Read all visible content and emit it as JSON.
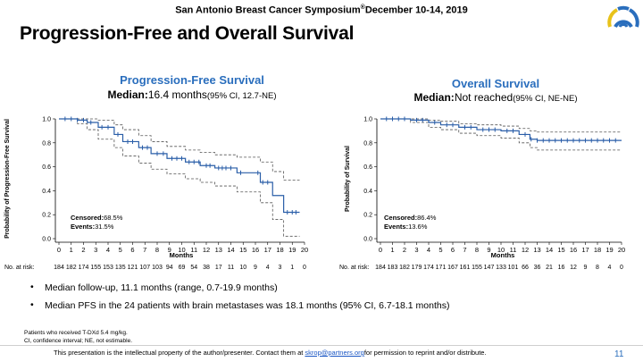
{
  "header": {
    "conference": "San Antonio Breast Cancer Symposium",
    "separator": "®",
    "dates": "December 10-14, 2019"
  },
  "slide_title": "Progression-Free and Overall Survival",
  "pfs_panel": {
    "title": "Progression-Free Survival",
    "median_label": "Median:",
    "median_value": "16.4 months",
    "median_ci": "(95% CI, 12.7-NE)",
    "censored_label": "Censored:",
    "censored_value": "68.5%",
    "events_label": "Events:",
    "events_value": "31.5%",
    "at_risk_label": "No. at risk:"
  },
  "os_panel": {
    "title": "Overall Survival",
    "median_label": "Median:",
    "median_value": "Not reached",
    "median_ci": "(95% CI, NE-NE)",
    "censored_label": "Censored:",
    "censored_value": "86.4%",
    "events_label": "Events:",
    "events_value": "13.6%",
    "at_risk_label": "No. at risk:"
  },
  "chart_data": [
    {
      "type": "line",
      "name": "pfs",
      "title": "Progression-Free Survival",
      "xlabel": "Months",
      "ylabel": "Probability of Progression-Free Survival",
      "xlim": [
        0,
        20
      ],
      "ylim": [
        0,
        1
      ],
      "xticks": [
        "0",
        "1",
        "2",
        "3",
        "4",
        "5",
        "6",
        "7",
        "8",
        "9",
        "10",
        "11",
        "12",
        "13",
        "14",
        "15",
        "16",
        "17",
        "18",
        "19",
        "20"
      ],
      "yticks": [
        "0.0",
        "0.2",
        "0.4",
        "0.6",
        "0.8",
        "1.0"
      ],
      "color": "#2a5ea8",
      "series": [
        {
          "name": "KM estimate",
          "x": [
            0,
            1.5,
            2.3,
            3.2,
            4.5,
            5.2,
            6.5,
            7.5,
            8.8,
            10.3,
            11.5,
            12.7,
            14.5,
            16.4,
            17.4,
            18.3,
            19.6
          ],
          "y": [
            1.0,
            0.99,
            0.97,
            0.93,
            0.87,
            0.81,
            0.76,
            0.71,
            0.67,
            0.64,
            0.61,
            0.59,
            0.55,
            0.47,
            0.36,
            0.22,
            0.22
          ]
        },
        {
          "name": "95% CI upper",
          "x": [
            0,
            1.5,
            2.3,
            3.2,
            4.5,
            5.2,
            6.5,
            7.5,
            8.8,
            10.3,
            11.5,
            12.7,
            14.5,
            16.4,
            17.4,
            18.3,
            19.6
          ],
          "y": [
            1.0,
            1.0,
            1.0,
            0.99,
            0.95,
            0.91,
            0.86,
            0.81,
            0.77,
            0.74,
            0.72,
            0.7,
            0.68,
            0.64,
            0.56,
            0.49,
            0.49
          ]
        },
        {
          "name": "95% CI lower",
          "x": [
            0,
            1.5,
            2.3,
            3.2,
            4.5,
            5.2,
            6.5,
            7.5,
            8.8,
            10.3,
            11.5,
            12.7,
            14.5,
            16.4,
            17.4,
            18.3,
            19.6
          ],
          "y": [
            1.0,
            0.96,
            0.91,
            0.83,
            0.76,
            0.69,
            0.63,
            0.58,
            0.54,
            0.5,
            0.47,
            0.44,
            0.39,
            0.3,
            0.16,
            0.02,
            0.02
          ]
        }
      ],
      "censor_x": [
        0.5,
        1,
        1.5,
        2,
        2.6,
        3.5,
        4,
        4.8,
        5.6,
        6,
        6.8,
        7.2,
        8,
        8.5,
        9.2,
        9.6,
        10,
        10.6,
        11,
        11.4,
        12,
        12.3,
        13,
        13.3,
        13.6,
        14,
        14.8,
        16.2,
        16.6,
        17,
        18.6,
        19,
        19.3
      ],
      "at_risk": [
        "184",
        "182",
        "174",
        "155",
        "153",
        "135",
        "121",
        "107",
        "103",
        "94",
        "69",
        "54",
        "38",
        "17",
        "11",
        "10",
        "9",
        "4",
        "3",
        "1",
        "0"
      ]
    },
    {
      "type": "line",
      "name": "os",
      "title": "Overall Survival",
      "xlabel": "Months",
      "ylabel": "Probability of Survival",
      "xlim": [
        0,
        20
      ],
      "ylim": [
        0,
        1
      ],
      "xticks": [
        "0",
        "1",
        "2",
        "3",
        "4",
        "5",
        "6",
        "7",
        "8",
        "9",
        "10",
        "11",
        "12",
        "13",
        "14",
        "15",
        "16",
        "17",
        "18",
        "19",
        "20"
      ],
      "yticks": [
        "0.0",
        "0.2",
        "0.4",
        "0.6",
        "0.8",
        "1.0"
      ],
      "color": "#2a5ea8",
      "series": [
        {
          "name": "KM estimate",
          "x": [
            0,
            2.5,
            4,
            5,
            6.5,
            8,
            10,
            11.5,
            12.4,
            13,
            20
          ],
          "y": [
            1.0,
            0.99,
            0.97,
            0.95,
            0.93,
            0.91,
            0.9,
            0.87,
            0.83,
            0.82,
            0.82
          ]
        },
        {
          "name": "95% CI upper",
          "x": [
            0,
            2.5,
            4,
            5,
            6.5,
            8,
            10,
            11.5,
            12.4,
            13,
            20
          ],
          "y": [
            1.0,
            1.0,
            0.99,
            0.98,
            0.96,
            0.95,
            0.94,
            0.92,
            0.9,
            0.89,
            0.89
          ]
        },
        {
          "name": "95% CI lower",
          "x": [
            0,
            2.5,
            4,
            5,
            6.5,
            8,
            10,
            11.5,
            12.4,
            13,
            20
          ],
          "y": [
            1.0,
            0.97,
            0.93,
            0.91,
            0.88,
            0.86,
            0.84,
            0.8,
            0.76,
            0.74,
            0.74
          ]
        }
      ],
      "censor_x": [
        0.5,
        1,
        1.5,
        2,
        3,
        3.5,
        4.5,
        5.5,
        6,
        7,
        7.5,
        8.5,
        9,
        9.5,
        10.5,
        11,
        12,
        12.5,
        13,
        13.5,
        14,
        14.5,
        15,
        15.5,
        16,
        16.5,
        17,
        17.5,
        18,
        18.5,
        19,
        19.5
      ],
      "at_risk": [
        "184",
        "183",
        "182",
        "179",
        "174",
        "171",
        "167",
        "161",
        "155",
        "147",
        "133",
        "101",
        "66",
        "36",
        "21",
        "16",
        "12",
        "9",
        "8",
        "4",
        "0"
      ]
    }
  ],
  "bullets": [
    "Median follow-up, 11.1 months (range, 0.7-19.9 months)",
    "Median PFS in the 24 patients with brain metastases was 18.1 months (95% CI, 6.7-18.1 months)"
  ],
  "footnotes": [
    "Patients who received T-DXd 5.4 mg/kg.",
    "CI, confidence interval; NE, not estimable."
  ],
  "footer": {
    "text_before": "This presentation is the intellectual property of the author/presenter. Contact them at",
    "email": "skrop@partners.org",
    "text_after": "for permission to reprint and/or distribute."
  },
  "page_number": "11",
  "colors": {
    "title_blue": "#2a6ebd",
    "curve_blue": "#2a5ea8",
    "ci_dash": "#555555"
  }
}
